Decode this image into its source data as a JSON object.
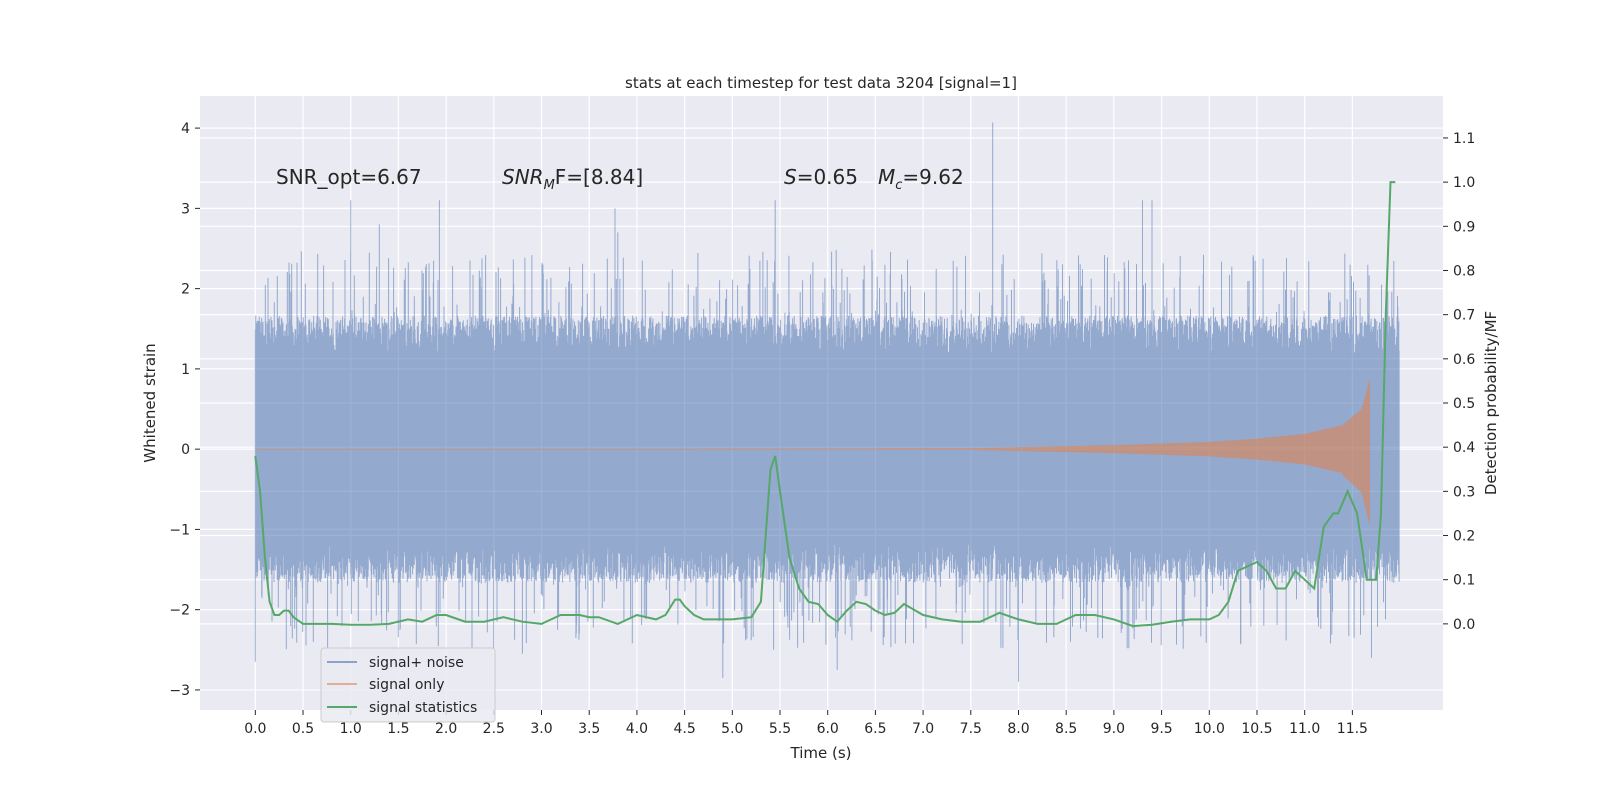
{
  "chart_data": {
    "type": "line",
    "title": "stats at each timestep for test data 3204 [signal=1]",
    "xlabel": "Time (s)",
    "ylabel_left": "Whitened strain",
    "ylabel_right": "Detection probability/MF",
    "xlim": [
      -0.58,
      12.45
    ],
    "ylim_left": [
      -3.25,
      4.4
    ],
    "ylim_right": [
      -0.195,
      1.195
    ],
    "x_ticks": [
      "0.0",
      "0.5",
      "1.0",
      "1.5",
      "2.0",
      "2.5",
      "3.0",
      "3.5",
      "4.0",
      "4.5",
      "5.0",
      "5.5",
      "6.0",
      "6.5",
      "7.0",
      "7.5",
      "8.0",
      "8.5",
      "9.0",
      "9.5",
      "10.0",
      "10.5",
      "11.0",
      "11.5"
    ],
    "y_ticks_left": [
      "4",
      "3",
      "2",
      "1",
      "0",
      "−1",
      "−2",
      "−3"
    ],
    "y_ticks_right": [
      "1.1",
      "1.0",
      "0.9",
      "0.8",
      "0.7",
      "0.6",
      "0.5",
      "0.4",
      "0.3",
      "0.2",
      "0.1",
      "0.0"
    ],
    "grid": true,
    "legend_position": "lower-left",
    "annotations": {
      "snr_opt": "SNR_opt=6.67",
      "snr_mf_main": "SNR",
      "snr_mf_sub": "M",
      "snr_mf_rest": "F=[8.84]",
      "s_sym": "S",
      "s_val": "=0.65",
      "mc_sym": "M",
      "mc_sub": "c",
      "mc_val": "=9.62"
    },
    "series": [
      {
        "name": "signal+ noise",
        "color": "#4c72b0",
        "axis": "left",
        "style": "dense noise band",
        "t_range": [
          0.0,
          11.99
        ],
        "typical_envelope": [
          -1.6,
          1.6
        ],
        "peaks": [
          {
            "t": 1.0,
            "y": 3.1
          },
          {
            "t": 1.3,
            "y": 2.8
          },
          {
            "t": 1.93,
            "y": 3.1
          },
          {
            "t": 3.77,
            "y": 3.0
          },
          {
            "t": 5.45,
            "y": 3.1
          },
          {
            "t": 7.73,
            "y": 4.07
          },
          {
            "t": 9.3,
            "y": 3.1
          },
          {
            "t": 9.4,
            "y": 3.1
          },
          {
            "t": 3.8,
            "y": 2.7
          },
          {
            "t": 0.0,
            "y": -2.65
          },
          {
            "t": 4.9,
            "y": -2.85
          },
          {
            "t": 8.0,
            "y": -2.9
          },
          {
            "t": 6.1,
            "y": -2.75
          },
          {
            "t": 11.7,
            "y": -2.6
          },
          {
            "t": 2.8,
            "y": -2.55
          }
        ]
      },
      {
        "name": "signal only",
        "color": "#dd8452",
        "axis": "left",
        "style": "chirp",
        "t_range": [
          0.0,
          11.68
        ],
        "t_merger": 11.68,
        "envelope": [
          {
            "t": 0.0,
            "amp": 0.0
          },
          {
            "t": 7.5,
            "amp": 0.01
          },
          {
            "t": 9.0,
            "amp": 0.05
          },
          {
            "t": 10.0,
            "amp": 0.09
          },
          {
            "t": 10.5,
            "amp": 0.13
          },
          {
            "t": 11.0,
            "amp": 0.19
          },
          {
            "t": 11.4,
            "amp": 0.3
          },
          {
            "t": 11.6,
            "amp": 0.5
          },
          {
            "t": 11.68,
            "amp": 0.85
          }
        ]
      },
      {
        "name": "signal statistics",
        "color": "#55a868",
        "axis": "right",
        "x": [
          0.0,
          0.05,
          0.1,
          0.15,
          0.2,
          0.25,
          0.3,
          0.35,
          0.4,
          0.5,
          0.6,
          0.8,
          1.0,
          1.2,
          1.4,
          1.6,
          1.75,
          1.9,
          2.0,
          2.2,
          2.4,
          2.6,
          2.8,
          3.0,
          3.2,
          3.4,
          3.5,
          3.6,
          3.8,
          4.0,
          4.2,
          4.3,
          4.4,
          4.45,
          4.5,
          4.6,
          4.7,
          4.8,
          5.0,
          5.2,
          5.3,
          5.4,
          5.45,
          5.5,
          5.6,
          5.7,
          5.8,
          5.9,
          6.0,
          6.1,
          6.2,
          6.3,
          6.4,
          6.5,
          6.6,
          6.7,
          6.8,
          7.0,
          7.2,
          7.4,
          7.6,
          7.8,
          8.0,
          8.2,
          8.4,
          8.5,
          8.6,
          8.8,
          9.0,
          9.2,
          9.4,
          9.6,
          9.8,
          10.0,
          10.1,
          10.2,
          10.3,
          10.4,
          10.5,
          10.6,
          10.7,
          10.8,
          10.9,
          11.0,
          11.1,
          11.2,
          11.3,
          11.35,
          11.45,
          11.55,
          11.65,
          11.7,
          11.75,
          11.8,
          11.85,
          11.9,
          11.95
        ],
        "y": [
          0.38,
          0.3,
          0.15,
          0.05,
          0.02,
          0.02,
          0.03,
          0.03,
          0.015,
          0.0,
          0.0,
          0.0,
          -0.002,
          -0.002,
          0.0,
          0.01,
          0.005,
          0.02,
          0.02,
          0.005,
          0.005,
          0.015,
          0.005,
          0.0,
          0.02,
          0.02,
          0.015,
          0.015,
          0.0,
          0.02,
          0.01,
          0.02,
          0.055,
          0.055,
          0.04,
          0.02,
          0.01,
          0.01,
          0.01,
          0.015,
          0.05,
          0.35,
          0.38,
          0.3,
          0.15,
          0.08,
          0.05,
          0.045,
          0.02,
          0.005,
          0.03,
          0.05,
          0.045,
          0.03,
          0.02,
          0.025,
          0.045,
          0.02,
          0.01,
          0.005,
          0.005,
          0.025,
          0.01,
          0.0,
          0.0,
          0.01,
          0.02,
          0.02,
          0.01,
          -0.005,
          -0.002,
          0.005,
          0.01,
          0.01,
          0.02,
          0.05,
          0.12,
          0.13,
          0.14,
          0.12,
          0.08,
          0.08,
          0.12,
          0.1,
          0.08,
          0.22,
          0.25,
          0.25,
          0.3,
          0.25,
          0.1,
          0.1,
          0.1,
          0.25,
          0.7,
          1.0,
          1.0
        ]
      }
    ]
  }
}
